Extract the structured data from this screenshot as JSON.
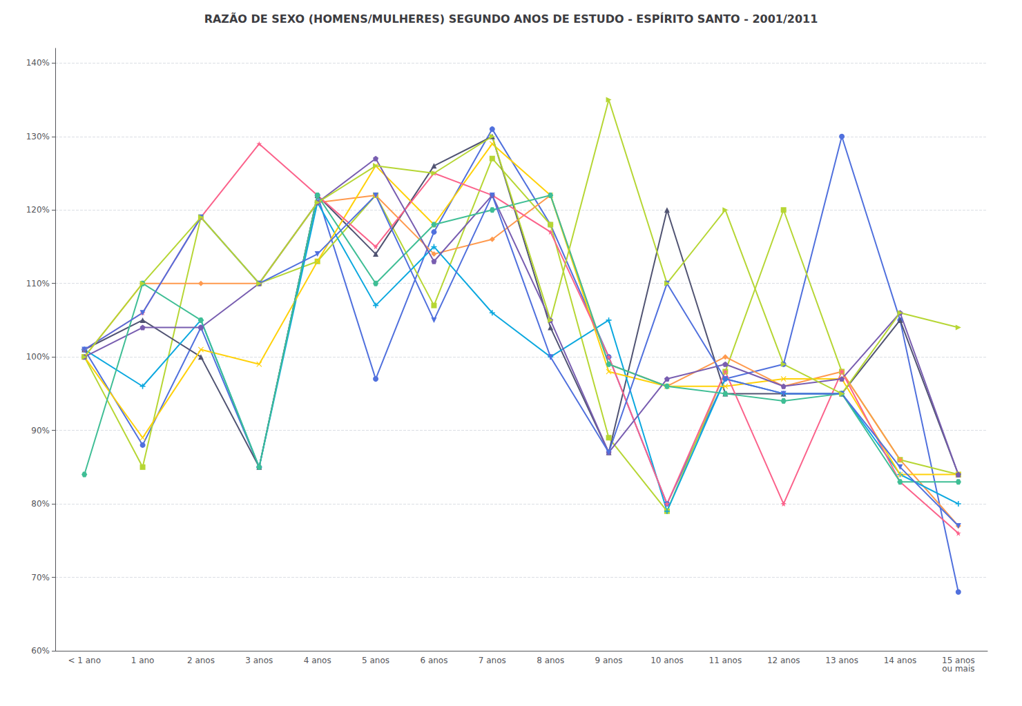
{
  "chart_data": {
    "type": "line",
    "title": "RAZÃO DE SEXO (HOMENS/MULHERES) SEGUNDO ANOS DE ESTUDO - ESPÍRITO SANTO - 2001/2011",
    "categories": [
      "< 1 ano",
      "1 ano",
      "2 anos",
      "3 anos",
      "4 anos",
      "5 anos",
      "6 anos",
      "7 anos",
      "8 anos",
      "9 anos",
      "10 anos",
      "11 anos",
      "12 anos",
      "13 anos",
      "14 anos",
      "15 anos\nou mais"
    ],
    "series": [
      {
        "marker": "circle",
        "values": [
          1.01,
          0.88,
          1.04,
          0.85,
          1.22,
          0.97,
          1.17,
          1.31,
          1.18,
          1.0,
          0.8,
          0.97,
          0.99,
          1.3,
          1.05,
          0.68
        ]
      },
      {
        "marker": "square",
        "values": [
          1.0,
          0.85,
          1.19,
          1.1,
          1.13,
          1.22,
          1.07,
          1.27,
          1.18,
          0.89,
          0.79,
          0.98,
          1.2,
          0.98,
          0.86,
          0.84
        ]
      },
      {
        "marker": "triangle",
        "values": [
          1.01,
          1.05,
          1.0,
          0.85,
          1.22,
          1.14,
          1.26,
          1.3,
          1.04,
          0.87,
          1.2,
          0.95,
          0.95,
          0.95,
          1.05,
          0.84
        ]
      },
      {
        "marker": "diamond",
        "values": [
          1.0,
          1.1,
          1.1,
          1.1,
          1.21,
          1.22,
          1.14,
          1.16,
          1.22,
          0.99,
          0.96,
          1.0,
          0.96,
          0.98,
          0.86,
          0.77
        ]
      },
      {
        "marker": "plus",
        "values": [
          1.01,
          0.96,
          1.05,
          0.85,
          1.21,
          1.07,
          1.15,
          1.06,
          1.0,
          1.05,
          0.79,
          0.97,
          0.95,
          0.95,
          0.84,
          0.8
        ]
      },
      {
        "marker": "x",
        "values": [
          1.0,
          0.89,
          1.01,
          0.99,
          1.13,
          1.26,
          1.18,
          1.29,
          1.22,
          0.98,
          0.96,
          0.96,
          0.97,
          0.97,
          0.84,
          0.84
        ]
      },
      {
        "marker": "star",
        "values": [
          1.01,
          1.06,
          1.19,
          1.29,
          1.22,
          1.15,
          1.25,
          1.22,
          1.17,
          1.0,
          0.8,
          0.98,
          0.8,
          0.98,
          0.83,
          0.76
        ]
      },
      {
        "marker": "pentagon",
        "values": [
          1.0,
          1.04,
          1.04,
          1.1,
          1.21,
          1.27,
          1.13,
          1.22,
          1.05,
          0.87,
          0.97,
          0.99,
          0.96,
          0.97,
          1.06,
          0.84
        ]
      },
      {
        "marker": "hexagon",
        "values": [
          0.84,
          1.1,
          1.05,
          0.85,
          1.22,
          1.1,
          1.18,
          1.2,
          1.22,
          0.99,
          0.96,
          0.95,
          0.94,
          0.95,
          0.83,
          0.83
        ]
      },
      {
        "marker": "triangle_down",
        "values": [
          1.01,
          1.06,
          1.19,
          1.1,
          1.14,
          1.22,
          1.05,
          1.22,
          1.0,
          0.87,
          1.1,
          0.97,
          0.95,
          0.95,
          0.85,
          0.77
        ]
      },
      {
        "marker": "triangle_right",
        "values": [
          1.0,
          1.1,
          1.19,
          1.1,
          1.21,
          1.26,
          1.25,
          1.3,
          1.05,
          1.35,
          1.1,
          1.2,
          0.99,
          0.95,
          1.06,
          1.04
        ]
      }
    ],
    "ylim": [
      0.6,
      1.42
    ],
    "yticks": [
      {
        "value": 0.6,
        "label": "60%"
      },
      {
        "value": 0.7,
        "label": "70%"
      },
      {
        "value": 0.8,
        "label": "80%"
      },
      {
        "value": 0.9,
        "label": "90%"
      },
      {
        "value": 1.0,
        "label": "100%"
      },
      {
        "value": 1.1,
        "label": "110%"
      },
      {
        "value": 1.2,
        "label": "120%"
      },
      {
        "value": 1.3,
        "label": "130%"
      },
      {
        "value": 1.4,
        "label": "140%"
      }
    ],
    "grid": true
  }
}
